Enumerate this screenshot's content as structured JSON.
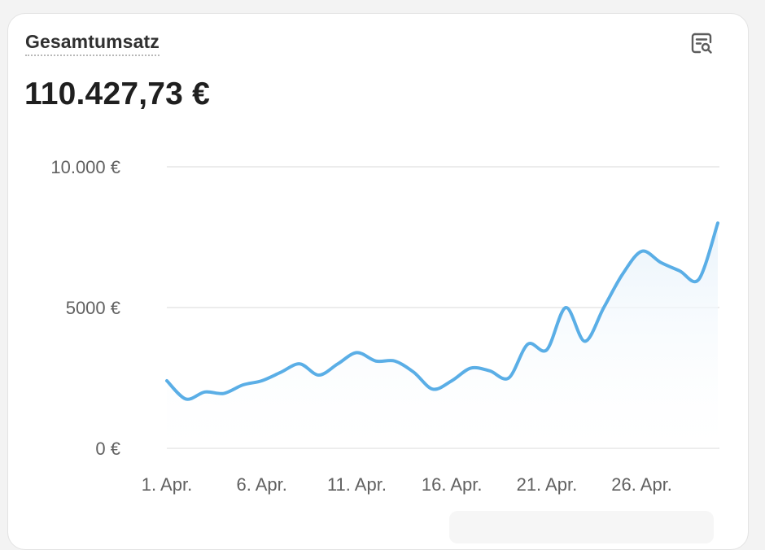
{
  "card": {
    "title": "Gesamtumsatz",
    "total": "110.427,73 €",
    "icon": "report-search-icon"
  },
  "colors": {
    "line": "#5aaee6",
    "fill_top": "#e6f2fb",
    "grid": "#e6e6e6",
    "text": "#303030"
  },
  "chart_data": {
    "type": "line",
    "title": "Gesamtumsatz",
    "xlabel": "",
    "ylabel": "",
    "ylim": [
      0,
      10000
    ],
    "yticks": [
      {
        "value": 0,
        "label": "0 €"
      },
      {
        "value": 5000,
        "label": "5000 €"
      },
      {
        "value": 10000,
        "label": "10.000 €"
      }
    ],
    "xtick_labels": [
      "1. Apr.",
      "6. Apr.",
      "11. Apr.",
      "16. Apr.",
      "21. Apr.",
      "26. Apr."
    ],
    "xtick_days": [
      1,
      6,
      11,
      16,
      21,
      26
    ],
    "grid": "horizontal",
    "x": [
      1,
      2,
      3,
      4,
      5,
      6,
      7,
      8,
      9,
      10,
      11,
      12,
      13,
      14,
      15,
      16,
      17,
      18,
      19,
      20,
      21,
      22,
      23,
      24,
      25,
      26,
      27,
      28,
      29,
      30
    ],
    "series": [
      {
        "values": [
          2400,
          1750,
          2000,
          1950,
          2250,
          2400,
          2700,
          3000,
          2600,
          3000,
          3400,
          3100,
          3100,
          2700,
          2100,
          2400,
          2850,
          2750,
          2500,
          3700,
          3500,
          5000,
          3800,
          5000,
          6200,
          7000,
          6600,
          6300,
          6000,
          8000
        ]
      }
    ]
  }
}
